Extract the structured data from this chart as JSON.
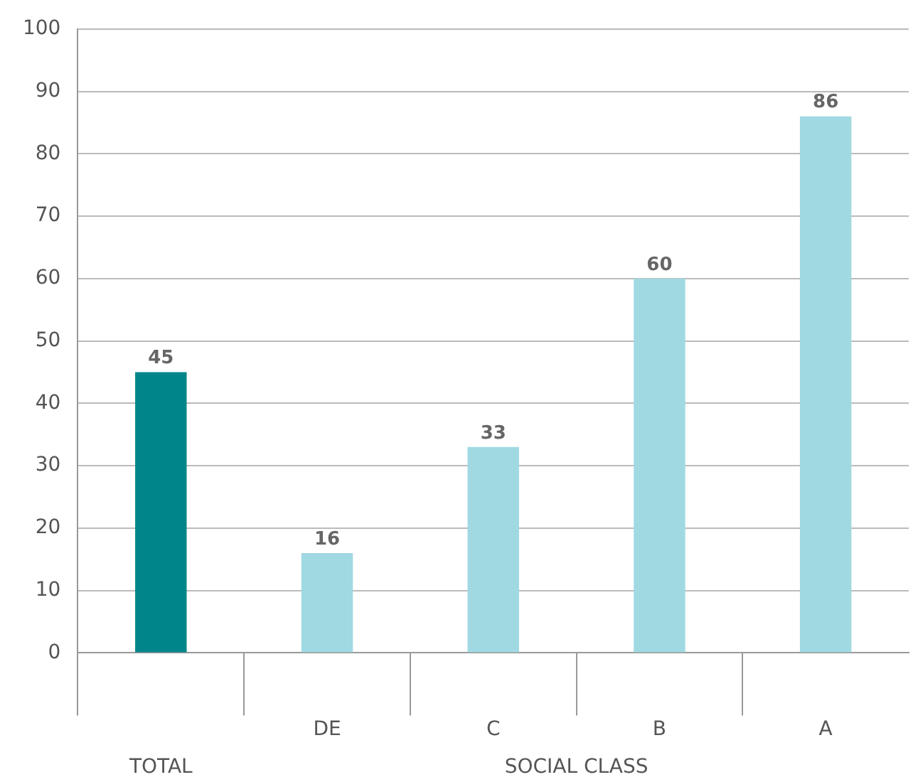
{
  "chart_data": {
    "type": "bar",
    "categories": [
      null,
      "DE",
      "C",
      "B",
      "A"
    ],
    "values": [
      45,
      16,
      33,
      60,
      86
    ],
    "colors": [
      "#00868a",
      "#a0d9e2",
      "#a0d9e2",
      "#a0d9e2",
      "#a0d9e2"
    ],
    "ylim": [
      0,
      100
    ],
    "yticks": [
      0,
      10,
      20,
      30,
      40,
      50,
      60,
      70,
      80,
      90,
      100
    ],
    "grid": "y",
    "data_labels": true,
    "legend": false,
    "annotations": [
      "TOTAL",
      "SOCIAL CLASS"
    ]
  }
}
